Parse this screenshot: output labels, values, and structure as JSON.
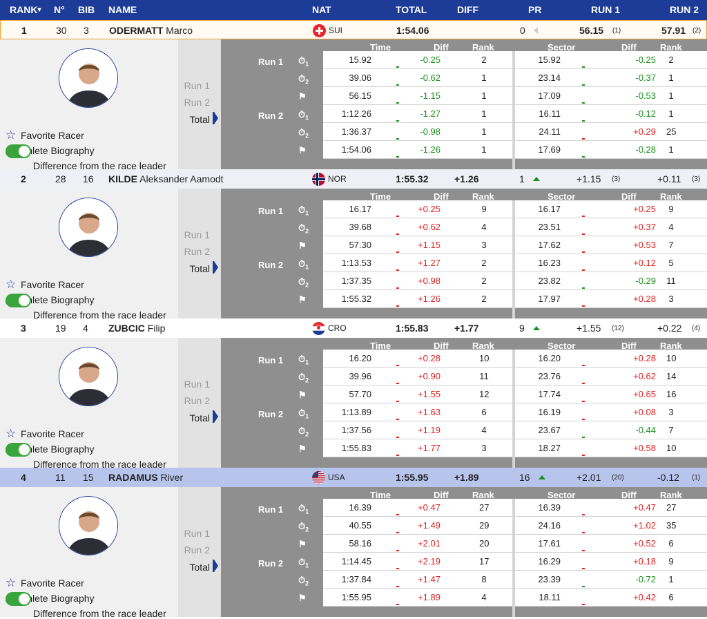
{
  "header": {
    "rank": "RANK",
    "rank_sort": "▾",
    "no": "N°",
    "bib": "BIB",
    "name": "NAME",
    "nat": "NAT",
    "total": "TOTAL",
    "diff": "DIFF",
    "pr": "PR",
    "run1": "RUN 1",
    "run2": "RUN 2"
  },
  "detail_labels": {
    "time": "Time",
    "diff": "Diff",
    "rank": "Rank",
    "sector": "Sector",
    "run1": "Run 1",
    "run2": "Run 2",
    "total": "Total",
    "favorite": "Favorite Racer",
    "biography": "Athlete Biography",
    "difference": "Difference from the race leader"
  },
  "colors": {
    "header_bg": "#1c3c97",
    "positive": "#d22222",
    "negative": "#1a8f1a",
    "highlight_row": "#b7c4ec"
  },
  "racers": [
    {
      "rank": "1",
      "no": "30",
      "bib": "3",
      "last": "ODERMATT",
      "first": "Marco",
      "nat": "SUI",
      "flag": "sui-flag-icon",
      "total": "1:54.06",
      "diff": "",
      "pr": "0",
      "pr_icon": "arrow-left-icon",
      "run1": "56.15",
      "run1_rank": "(1)",
      "run2": "57.91",
      "run2_rank": "(2)",
      "style": "leader",
      "splits": [
        {
          "time": "15.92",
          "diff": "-0.25",
          "rank": "2",
          "sector": "15.92",
          "sdiff": "-0.25",
          "srank": "2"
        },
        {
          "time": "39.06",
          "diff": "-0.62",
          "rank": "1",
          "sector": "23.14",
          "sdiff": "-0.37",
          "srank": "1"
        },
        {
          "time": "56.15",
          "diff": "-1.15",
          "rank": "1",
          "sector": "17.09",
          "sdiff": "-0.53",
          "srank": "1"
        },
        {
          "time": "1:12.26",
          "diff": "-1.27",
          "rank": "1",
          "sector": "16.11",
          "sdiff": "-0.12",
          "srank": "1"
        },
        {
          "time": "1:36.37",
          "diff": "-0.98",
          "rank": "1",
          "sector": "24.11",
          "sdiff": "+0.29",
          "srank": "25"
        },
        {
          "time": "1:54.06",
          "diff": "-1.26",
          "rank": "1",
          "sector": "17.69",
          "sdiff": "-0.28",
          "srank": "1"
        }
      ]
    },
    {
      "rank": "2",
      "no": "28",
      "bib": "16",
      "last": "KILDE",
      "first": "Aleksander Aamodt",
      "nat": "NOR",
      "flag": "nor-flag-icon",
      "total": "1:55.32",
      "diff": "+1.26",
      "pr": "1",
      "pr_icon": "arrow-up-icon",
      "run1": "+1.15",
      "run1_rank": "(3)",
      "run2": "+0.11",
      "run2_rank": "(3)",
      "style": "grey",
      "splits": [
        {
          "time": "16.17",
          "diff": "+0.25",
          "rank": "9",
          "sector": "16.17",
          "sdiff": "+0.25",
          "srank": "9"
        },
        {
          "time": "39.68",
          "diff": "+0.62",
          "rank": "4",
          "sector": "23.51",
          "sdiff": "+0.37",
          "srank": "4"
        },
        {
          "time": "57.30",
          "diff": "+1.15",
          "rank": "3",
          "sector": "17.62",
          "sdiff": "+0.53",
          "srank": "7"
        },
        {
          "time": "1:13.53",
          "diff": "+1.27",
          "rank": "2",
          "sector": "16.23",
          "sdiff": "+0.12",
          "srank": "5"
        },
        {
          "time": "1:37.35",
          "diff": "+0.98",
          "rank": "2",
          "sector": "23.82",
          "sdiff": "-0.29",
          "srank": "11"
        },
        {
          "time": "1:55.32",
          "diff": "+1.26",
          "rank": "2",
          "sector": "17.97",
          "sdiff": "+0.28",
          "srank": "3"
        }
      ]
    },
    {
      "rank": "3",
      "no": "19",
      "bib": "4",
      "last": "ZUBCIC",
      "first": "Filip",
      "nat": "CRO",
      "flag": "cro-flag-icon",
      "total": "1:55.83",
      "diff": "+1.77",
      "pr": "9",
      "pr_icon": "arrow-up-icon",
      "run1": "+1.55",
      "run1_rank": "(12)",
      "run2": "+0.22",
      "run2_rank": "(4)",
      "style": "white",
      "splits": [
        {
          "time": "16.20",
          "diff": "+0.28",
          "rank": "10",
          "sector": "16.20",
          "sdiff": "+0.28",
          "srank": "10"
        },
        {
          "time": "39.96",
          "diff": "+0.90",
          "rank": "11",
          "sector": "23.76",
          "sdiff": "+0.62",
          "srank": "14"
        },
        {
          "time": "57.70",
          "diff": "+1.55",
          "rank": "12",
          "sector": "17.74",
          "sdiff": "+0.65",
          "srank": "16"
        },
        {
          "time": "1:13.89",
          "diff": "+1.63",
          "rank": "6",
          "sector": "16.19",
          "sdiff": "+0.08",
          "srank": "3"
        },
        {
          "time": "1:37.56",
          "diff": "+1.19",
          "rank": "4",
          "sector": "23.67",
          "sdiff": "-0.44",
          "srank": "7"
        },
        {
          "time": "1:55.83",
          "diff": "+1.77",
          "rank": "3",
          "sector": "18.27",
          "sdiff": "+0.58",
          "srank": "10"
        }
      ]
    },
    {
      "rank": "4",
      "no": "11",
      "bib": "15",
      "last": "RADAMUS",
      "first": "River",
      "nat": "USA",
      "flag": "usa-flag-icon",
      "total": "1:55.95",
      "diff": "+1.89",
      "pr": "16",
      "pr_icon": "arrow-up-icon",
      "run1": "+2.01",
      "run1_rank": "(20)",
      "run2": "-0.12",
      "run2_rank": "(1)",
      "style": "blue",
      "splits": [
        {
          "time": "16.39",
          "diff": "+0.47",
          "rank": "27",
          "sector": "16.39",
          "sdiff": "+0.47",
          "srank": "27"
        },
        {
          "time": "40.55",
          "diff": "+1.49",
          "rank": "29",
          "sector": "24.16",
          "sdiff": "+1.02",
          "srank": "35"
        },
        {
          "time": "58.16",
          "diff": "+2.01",
          "rank": "20",
          "sector": "17.61",
          "sdiff": "+0.52",
          "srank": "6"
        },
        {
          "time": "1:14.45",
          "diff": "+2.19",
          "rank": "17",
          "sector": "16.29",
          "sdiff": "+0.18",
          "srank": "9"
        },
        {
          "time": "1:37.84",
          "diff": "+1.47",
          "rank": "8",
          "sector": "23.39",
          "sdiff": "-0.72",
          "srank": "1"
        },
        {
          "time": "1:55.95",
          "diff": "+1.89",
          "rank": "4",
          "sector": "18.11",
          "sdiff": "+0.42",
          "srank": "6"
        }
      ]
    }
  ]
}
